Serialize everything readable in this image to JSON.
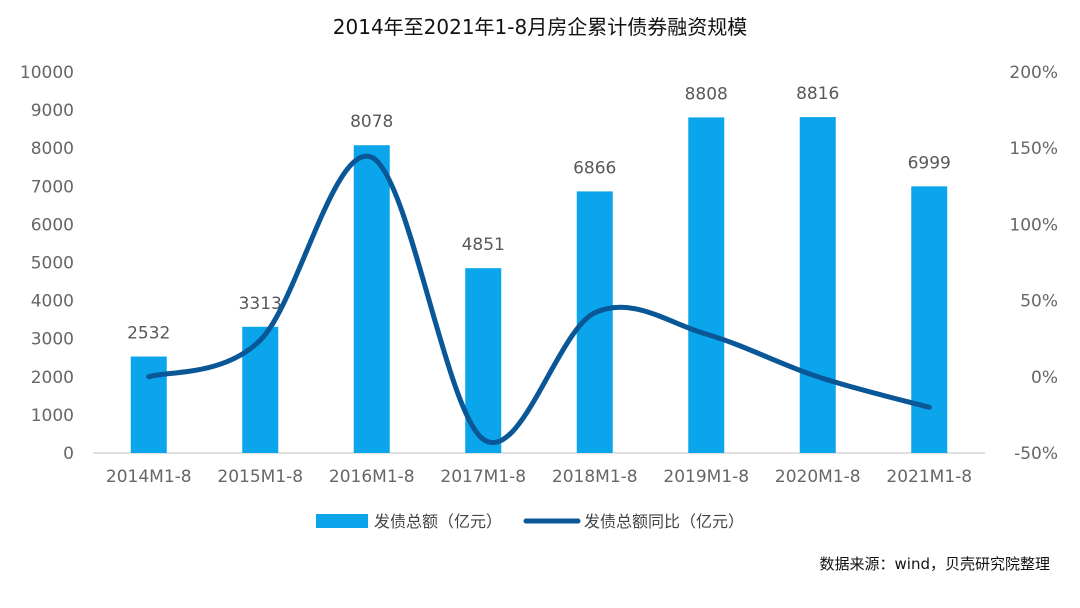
{
  "chart_data": {
    "type": "bar",
    "title": "2014年至2021年1-8月房企累计债券融资规模",
    "categories": [
      "2014M1-8",
      "2015M1-8",
      "2016M1-8",
      "2017M1-8",
      "2018M1-8",
      "2019M1-8",
      "2020M1-8",
      "2021M1-8"
    ],
    "series": [
      {
        "name": "发债总额（亿元）",
        "type": "bar",
        "axis": "left",
        "color": "#0aa5ea",
        "values": [
          2532,
          3313,
          8078,
          4851,
          6866,
          8808,
          8816,
          6999
        ],
        "data_labels": [
          "2532",
          "3313",
          "8078",
          "4851",
          "6866",
          "8808",
          "8816",
          "6999"
        ]
      },
      {
        "name": "发债总额同比（亿元）",
        "type": "line",
        "smooth": true,
        "axis": "right",
        "color": "#0a5798",
        "values": [
          0,
          24,
          144,
          -41,
          42,
          28,
          0,
          -20
        ]
      }
    ],
    "y_left": {
      "range": [
        0,
        10000
      ],
      "ticks": [
        "0",
        "1000",
        "2000",
        "3000",
        "4000",
        "5000",
        "6000",
        "7000",
        "8000",
        "9000",
        "10000"
      ]
    },
    "y_right": {
      "range": [
        -50,
        200
      ],
      "ticks": [
        "-50%",
        "0%",
        "50%",
        "100%",
        "150%",
        "200%"
      ]
    },
    "grid": false,
    "legend_position": "bottom-center",
    "source": "数据来源：wind，贝壳研究院整理"
  }
}
